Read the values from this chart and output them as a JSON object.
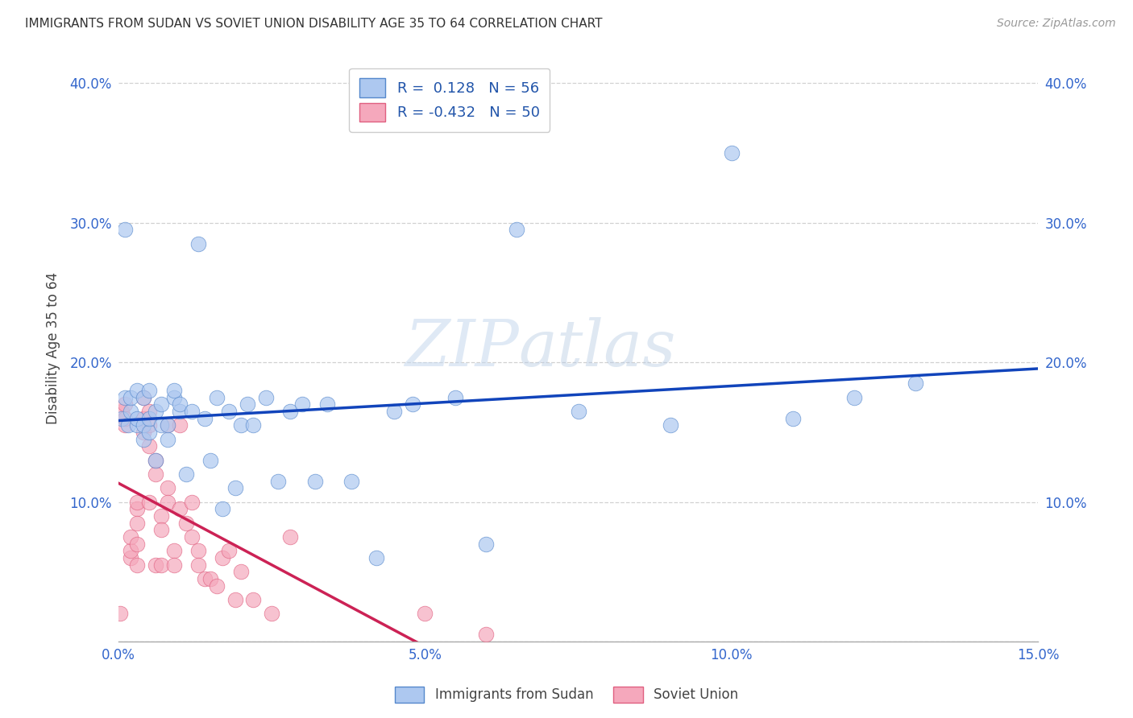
{
  "title": "IMMIGRANTS FROM SUDAN VS SOVIET UNION DISABILITY AGE 35 TO 64 CORRELATION CHART",
  "source": "Source: ZipAtlas.com",
  "ylabel": "Disability Age 35 to 64",
  "xlim": [
    0.0,
    0.15
  ],
  "ylim": [
    0.0,
    0.42
  ],
  "xticks": [
    0.0,
    0.05,
    0.1,
    0.15
  ],
  "xticklabels": [
    "0.0%",
    "5.0%",
    "10.0%",
    "15.0%"
  ],
  "yticks": [
    0.1,
    0.2,
    0.3,
    0.4
  ],
  "yticklabels": [
    "10.0%",
    "20.0%",
    "30.0%",
    "40.0%"
  ],
  "sudan_color": "#adc8f0",
  "soviet_color": "#f5a8bc",
  "sudan_edge": "#5588cc",
  "soviet_edge": "#e06080",
  "trend_blue": "#1144bb",
  "trend_pink": "#cc2255",
  "r_sudan": 0.128,
  "n_sudan": 56,
  "r_soviet": -0.432,
  "n_soviet": 50,
  "sudan_x": [
    0.0005,
    0.001,
    0.001,
    0.0015,
    0.002,
    0.002,
    0.003,
    0.003,
    0.003,
    0.004,
    0.004,
    0.004,
    0.005,
    0.005,
    0.005,
    0.006,
    0.006,
    0.007,
    0.007,
    0.008,
    0.008,
    0.009,
    0.009,
    0.01,
    0.01,
    0.011,
    0.012,
    0.013,
    0.014,
    0.015,
    0.016,
    0.017,
    0.018,
    0.019,
    0.02,
    0.021,
    0.022,
    0.024,
    0.026,
    0.028,
    0.03,
    0.032,
    0.034,
    0.038,
    0.042,
    0.045,
    0.048,
    0.055,
    0.06,
    0.065,
    0.075,
    0.09,
    0.1,
    0.11,
    0.12,
    0.13
  ],
  "sudan_y": [
    0.16,
    0.175,
    0.295,
    0.155,
    0.165,
    0.175,
    0.155,
    0.16,
    0.18,
    0.145,
    0.155,
    0.175,
    0.15,
    0.16,
    0.18,
    0.13,
    0.165,
    0.155,
    0.17,
    0.155,
    0.145,
    0.175,
    0.18,
    0.165,
    0.17,
    0.12,
    0.165,
    0.285,
    0.16,
    0.13,
    0.175,
    0.095,
    0.165,
    0.11,
    0.155,
    0.17,
    0.155,
    0.175,
    0.115,
    0.165,
    0.17,
    0.115,
    0.17,
    0.115,
    0.06,
    0.165,
    0.17,
    0.175,
    0.07,
    0.295,
    0.165,
    0.155,
    0.35,
    0.16,
    0.175,
    0.185
  ],
  "soviet_x": [
    0.0003,
    0.0005,
    0.001,
    0.001,
    0.001,
    0.002,
    0.002,
    0.002,
    0.003,
    0.003,
    0.003,
    0.003,
    0.003,
    0.004,
    0.004,
    0.004,
    0.005,
    0.005,
    0.005,
    0.005,
    0.006,
    0.006,
    0.006,
    0.007,
    0.007,
    0.007,
    0.008,
    0.008,
    0.008,
    0.009,
    0.009,
    0.01,
    0.01,
    0.011,
    0.012,
    0.012,
    0.013,
    0.013,
    0.014,
    0.015,
    0.016,
    0.017,
    0.018,
    0.019,
    0.02,
    0.022,
    0.025,
    0.028,
    0.05,
    0.06
  ],
  "soviet_y": [
    0.02,
    0.165,
    0.17,
    0.155,
    0.16,
    0.06,
    0.065,
    0.075,
    0.095,
    0.085,
    0.07,
    0.055,
    0.1,
    0.175,
    0.16,
    0.15,
    0.1,
    0.14,
    0.165,
    0.155,
    0.13,
    0.12,
    0.055,
    0.09,
    0.08,
    0.055,
    0.155,
    0.11,
    0.1,
    0.065,
    0.055,
    0.155,
    0.095,
    0.085,
    0.1,
    0.075,
    0.065,
    0.055,
    0.045,
    0.045,
    0.04,
    0.06,
    0.065,
    0.03,
    0.05,
    0.03,
    0.02,
    0.075,
    0.02,
    0.005
  ]
}
